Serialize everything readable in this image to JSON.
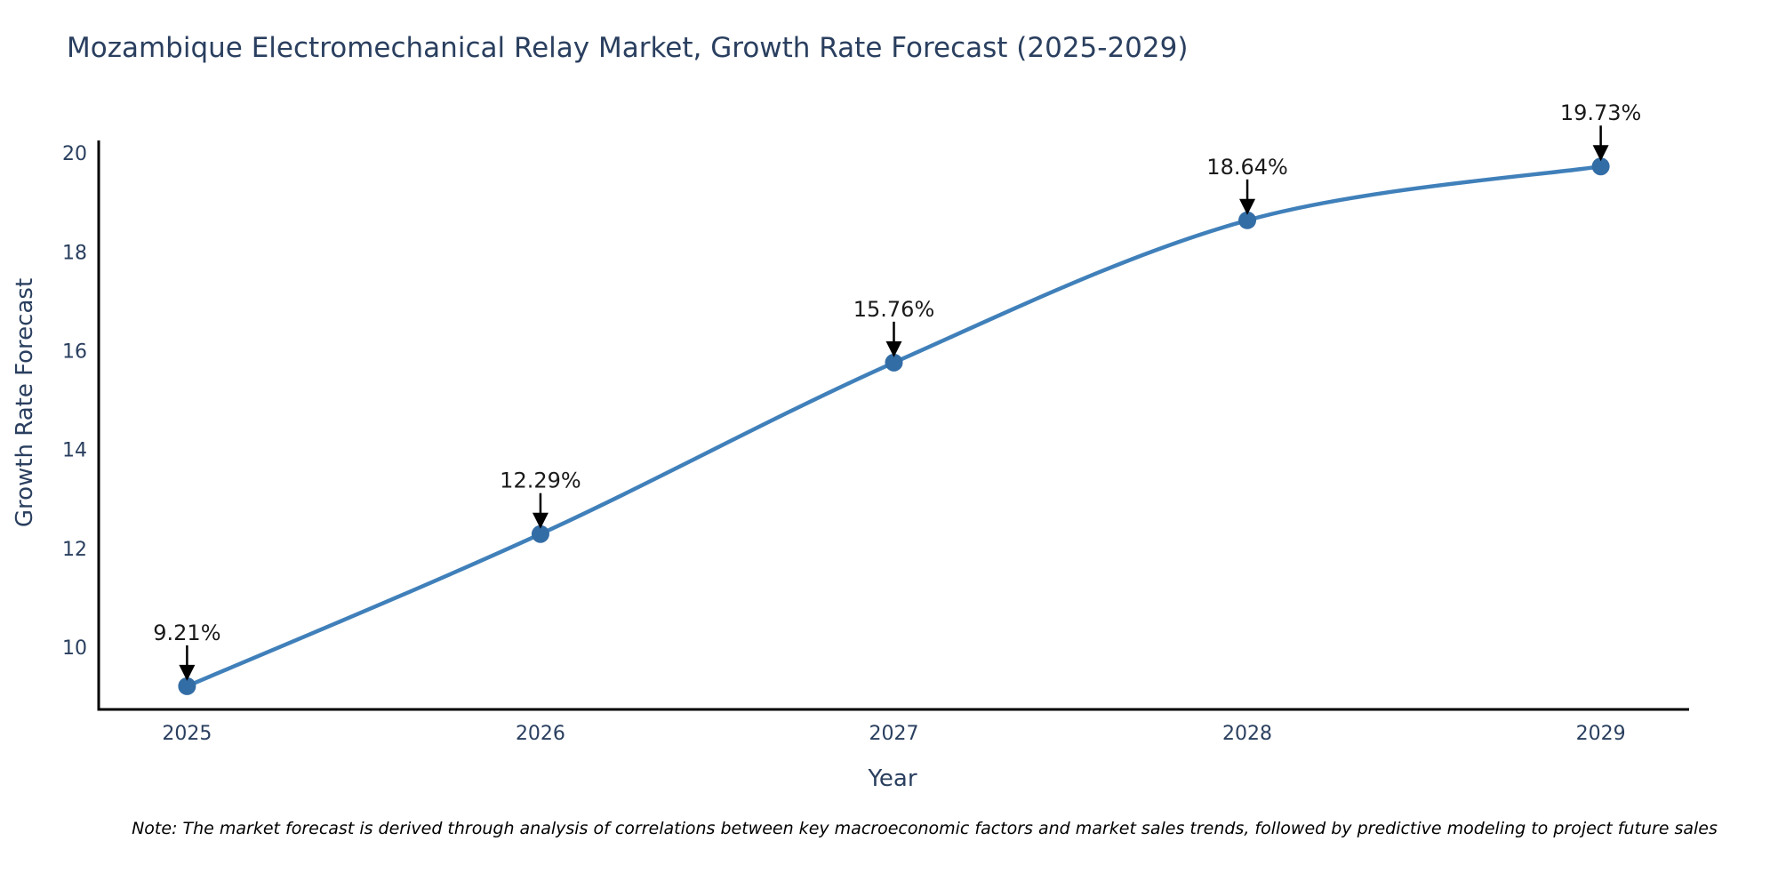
{
  "page": {
    "background": "#ffffff"
  },
  "chart_data": {
    "type": "line",
    "title": "Mozambique Electromechanical Relay Market, Growth Rate Forecast (2025-2029)",
    "xlabel": "Year",
    "ylabel": "Growth Rate Forecast",
    "x": [
      2025,
      2026,
      2027,
      2028,
      2029
    ],
    "values": [
      9.21,
      12.29,
      15.76,
      18.64,
      19.73
    ],
    "annotations": [
      "9.21%",
      "12.29%",
      "15.76%",
      "18.64%",
      "19.73%"
    ],
    "x_ticks": [
      "2025",
      "2026",
      "2027",
      "2028",
      "2029"
    ],
    "y_ticks": [
      10,
      12,
      14,
      16,
      18,
      20
    ],
    "xlim": [
      2024.75,
      2029.25
    ],
    "ylim": [
      8.74,
      20.22
    ],
    "grid": false,
    "legend_position": "none",
    "line_shape": "spline",
    "colors": {
      "line": "#4080ba",
      "marker": "#336da6",
      "axis": "#000000",
      "arrow": "#000000",
      "text": "#2a3f5f",
      "annotation": "#1a1a1a",
      "note": "#000000"
    },
    "note": "Note: The market forecast is derived through analysis of correlations between key macroeconomic factors and market sales trends, followed by predictive modeling to project future sales"
  }
}
